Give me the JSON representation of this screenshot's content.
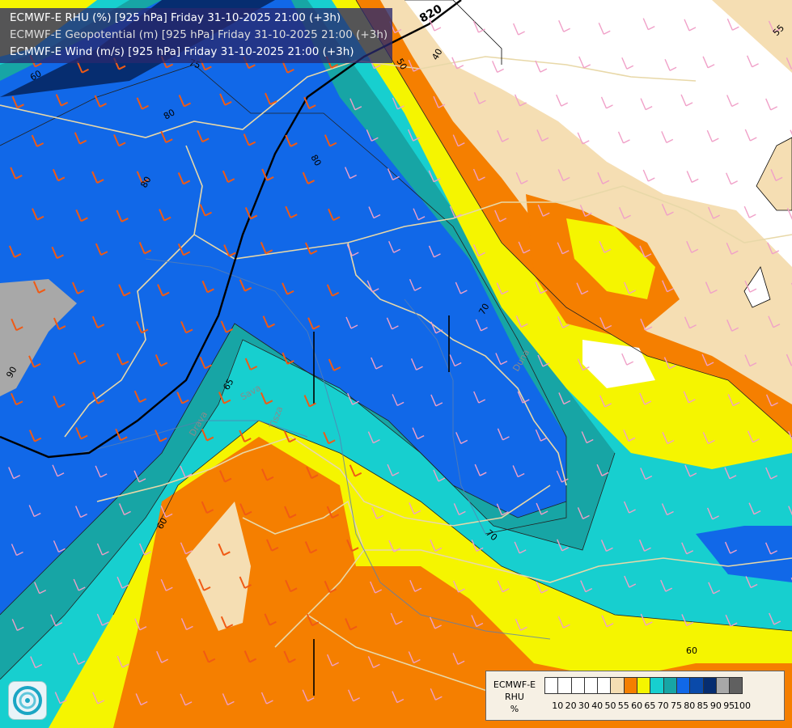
{
  "header": {
    "line1": "ECMWF-E RHU (%) [925 hPa] Friday 31-10-2025 21:00 (+3h)",
    "line2": "ECMWF-E Geopotential (m) [925 hPa] Friday 31-10-2025 21:00 (+3h)",
    "line3": "ECMWF-E Wind (m/s) [925 hPa] Friday 31-10-2025 21:00 (+3h)"
  },
  "legend": {
    "title_lines": [
      "ECMWF-E",
      "RHU",
      "%"
    ],
    "values": [
      "10",
      "20",
      "30",
      "40",
      "50",
      "55",
      "60",
      "65",
      "70",
      "75",
      "80",
      "85",
      "90",
      "95",
      "100"
    ],
    "colors": [
      "#ffffff",
      "#ffffff",
      "#ffffff",
      "#ffffff",
      "#ffffff",
      "#f5deb3",
      "#f57f00",
      "#f5f500",
      "#17cfcf",
      "#17a5a5",
      "#1168e8",
      "#0a4aaa",
      "#062d70",
      "#a8a8a8",
      "#606060"
    ]
  },
  "map_labels": {
    "geopotential": "820",
    "contour_labels": [
      "40",
      "50",
      "55",
      "60",
      "60",
      "60",
      "65",
      "70",
      "70",
      "75",
      "80",
      "80",
      "80",
      "90"
    ],
    "place_labels": [
      "Tisza",
      "Sava",
      "Drava",
      "Duna"
    ]
  },
  "colors": {
    "rhu_50": "#ffffff",
    "rhu_55": "#f5deb3",
    "rhu_60": "#f57f00",
    "rhu_65": "#f5f500",
    "rhu_70": "#17cfcf",
    "rhu_75": "#17a5a5",
    "rhu_80": "#1168e8",
    "rhu_85": "#0a4aaa",
    "rhu_90": "#062d70",
    "rhu_95": "#a8a8a8",
    "wind_barbs": [
      "#f05a14",
      "#e83c6e",
      "#f0a0c8"
    ]
  },
  "icons": [
    "ecmwf-logo-icon"
  ]
}
